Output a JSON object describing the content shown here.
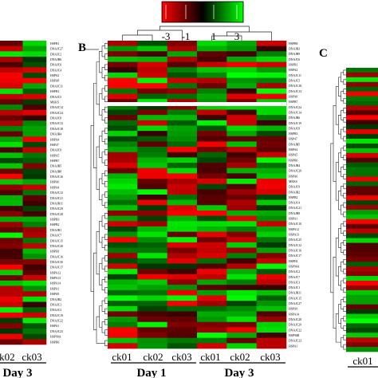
{
  "chart_data": {
    "type": "heatmap",
    "title": "",
    "legend": {
      "tick_labels": [
        "-3",
        "-1",
        "1",
        "3"
      ],
      "range": [
        -3,
        3
      ],
      "colors": {
        "low": "#ff0000",
        "mid": "#000000",
        "high": "#00ff00"
      }
    },
    "panels": [
      {
        "letter": "",
        "columns": [
          "ck02",
          "ck03"
        ],
        "group_labels": [
          "Day 3"
        ],
        "group_spans": [
          [
            0,
            2
          ]
        ],
        "genes": [
          "HSPB1",
          "DNAJC27",
          "DNAJC2",
          "DNAJB6",
          "DNAJC6",
          "DNAJC4",
          "HSPA2",
          "HSPA8",
          "DNAJC11",
          "HSPB1",
          "DNAJC5",
          "MKKS",
          "DNAJC14",
          "DNAJC24",
          "DNAJC8",
          "DNAJC13",
          "DNAJC18",
          "DNAJB4",
          "HSPA4",
          "HSP47",
          "DNAJC9",
          "HSPA5",
          "HSPB7",
          "DNAJB5",
          "DNAJB8",
          "DNAJC10",
          "HSPA6",
          "HSPA4",
          "DNAJC12",
          "DNAJC21",
          "DNAJB11",
          "DNAJC29",
          "DNAJC28",
          "HSPB3",
          "HSPB2",
          "DNAJB1",
          "DNAJC7",
          "DNAJC15",
          "DNAJC20",
          "HSPH1",
          "DNAJC16",
          "DNAJC30",
          "DNAJC17",
          "HSPA12",
          "HSPA13",
          "HSPA14",
          "HSPA1",
          "HSPA9",
          "DNAJB2",
          "DNAJC1",
          "DNAJC3",
          "DNAJC19",
          "DNAJC22",
          "HSPA1",
          "DNAJC23",
          "HSP90A",
          "HSPB6"
        ]
      },
      {
        "letter": "B",
        "columns": [
          "ck01",
          "ck02",
          "ck03",
          "ck01",
          "ck02",
          "ck03"
        ],
        "group_labels": [
          "Day 1",
          "Day 3"
        ],
        "group_spans": [
          [
            0,
            3
          ],
          [
            3,
            6
          ]
        ],
        "genes": [
          "HSPB8",
          "DNAJB3",
          "DNAJB9",
          "DNAJC6",
          "HSPB1",
          "HSPA2",
          "DNAJC11",
          "DNAJC5",
          "DNAJC18",
          "DNAJC13",
          "HSPA8",
          "HSPB7",
          "DNAJC24",
          "DNAJC14",
          "DNAJB6",
          "DNAJC19",
          "DNAJC8",
          "HSPB3",
          "HSP47",
          "DNAJB5",
          "HSPA4",
          "HSPA5",
          "HSPB6",
          "DNAJB4",
          "DNAJC20",
          "HSPA6",
          "MKKS",
          "DNAJC9",
          "DNAJB2",
          "HSPB2",
          "DNAJC4",
          "DNAJC21",
          "DNAJB8",
          "HSPA1",
          "DNAJC10",
          "HSPA12",
          "HSPA13",
          "DNAJC25",
          "DNAJC12",
          "DNAJC16",
          "DNAJC17",
          "HSPH1",
          "HSP90A",
          "DNAJC2",
          "DNAJC7",
          "DNAJC3",
          "DNAJC1",
          "DNAJB11",
          "DNAJC15",
          "DNAJC27",
          "HSPA9",
          "HSPA14",
          "DNAJC28",
          "DNAJC29",
          "DNAJC22",
          "HSP90B",
          "DNAJC23",
          "HSPA1"
        ]
      },
      {
        "letter": "C",
        "columns": [
          "ck01"
        ],
        "group_labels": [],
        "group_spans": [],
        "genes": []
      }
    ]
  }
}
